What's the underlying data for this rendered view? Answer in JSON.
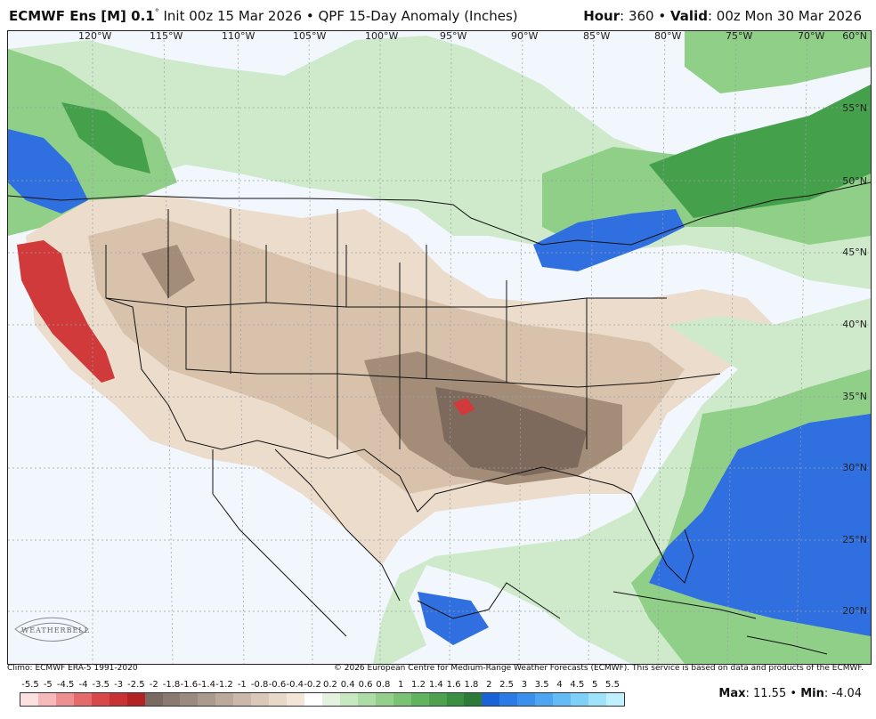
{
  "header": {
    "model": "ECMWF Ens [M] 0.1",
    "degree": "°",
    "init": "Init 00z 15 Mar 2026",
    "bullet": "•",
    "product": "QPF 15-Day Anomaly (Inches)",
    "hour_label": "Hour",
    "hour_value": ": 360",
    "valid_label": "Valid",
    "valid_value": ": 00z Mon 30 Mar 2026"
  },
  "longitude_labels": [
    "120°W",
    "115°W",
    "110°W",
    "105°W",
    "100°W",
    "95°W",
    "90°W",
    "85°W",
    "80°W",
    "75°W",
    "70°W"
  ],
  "latitude_labels": [
    "60°N",
    "55°N",
    "50°N",
    "45°N",
    "40°N",
    "35°N",
    "30°N",
    "25°N",
    "20°N"
  ],
  "footer": {
    "climo": "Climo: ECMWF ERA-5 1991-2020",
    "copyright": "© 2026 European Centre for Medium-Range Weather Forecasts (ECMWF). This service is based on data and products of the ECMWF."
  },
  "logo": {
    "text": "WEATHERBELL"
  },
  "colorbar": {
    "ticks": [
      "-5.5",
      "-5",
      "-4.5",
      "-4",
      "-3.5",
      "-3",
      "-2.5",
      "-2",
      "-1.8",
      "-1.6",
      "-1.4",
      "-1.2",
      "-1",
      "-0.8",
      "-0.6",
      "-0.4",
      "-0.2",
      "0.2",
      "0.4",
      "0.6",
      "0.8",
      "1",
      "1.2",
      "1.4",
      "1.6",
      "1.8",
      "2",
      "2.5",
      "3",
      "3.5",
      "4",
      "4.5",
      "5",
      "5.5"
    ],
    "colors": [
      "#fde0e0",
      "#f7b9b9",
      "#ef9090",
      "#e56a6a",
      "#d94848",
      "#c93232",
      "#b42323",
      "#7a6a62",
      "#8a7a70",
      "#9a8a80",
      "#ab9a8e",
      "#bba99c",
      "#cbb8aa",
      "#dac8b8",
      "#e8d8c8",
      "#f3e6d8",
      "#ffffff",
      "#e3f3e0",
      "#c8e8c2",
      "#aedca6",
      "#94cf8c",
      "#7bc274",
      "#62b35e",
      "#4ea24d",
      "#3b8f41",
      "#2e7a38",
      "#1b62d8",
      "#2b7ae6",
      "#3b90ee",
      "#4ea6f2",
      "#64bcf5",
      "#7fd0f8",
      "#9fe2fb",
      "#bff0fd"
    ]
  },
  "stats": {
    "max_label": "Max",
    "max_value": ": 11.55",
    "bullet": "•",
    "min_label": "Min",
    "min_value": ": -4.04"
  },
  "palette": {
    "ocean_bg": "#f2f6fd",
    "dry_light": "#ecdccb",
    "dry_mid": "#d9c2ab",
    "dry_dark": "#a38c78",
    "dry_darkest": "#7d6a5c",
    "wet_light": "#cfeacb",
    "wet_mid": "#8fcf88",
    "wet_dark": "#45a04c",
    "wet_blue": "#2f6fe0",
    "very_dry_red": "#d13a3a"
  }
}
